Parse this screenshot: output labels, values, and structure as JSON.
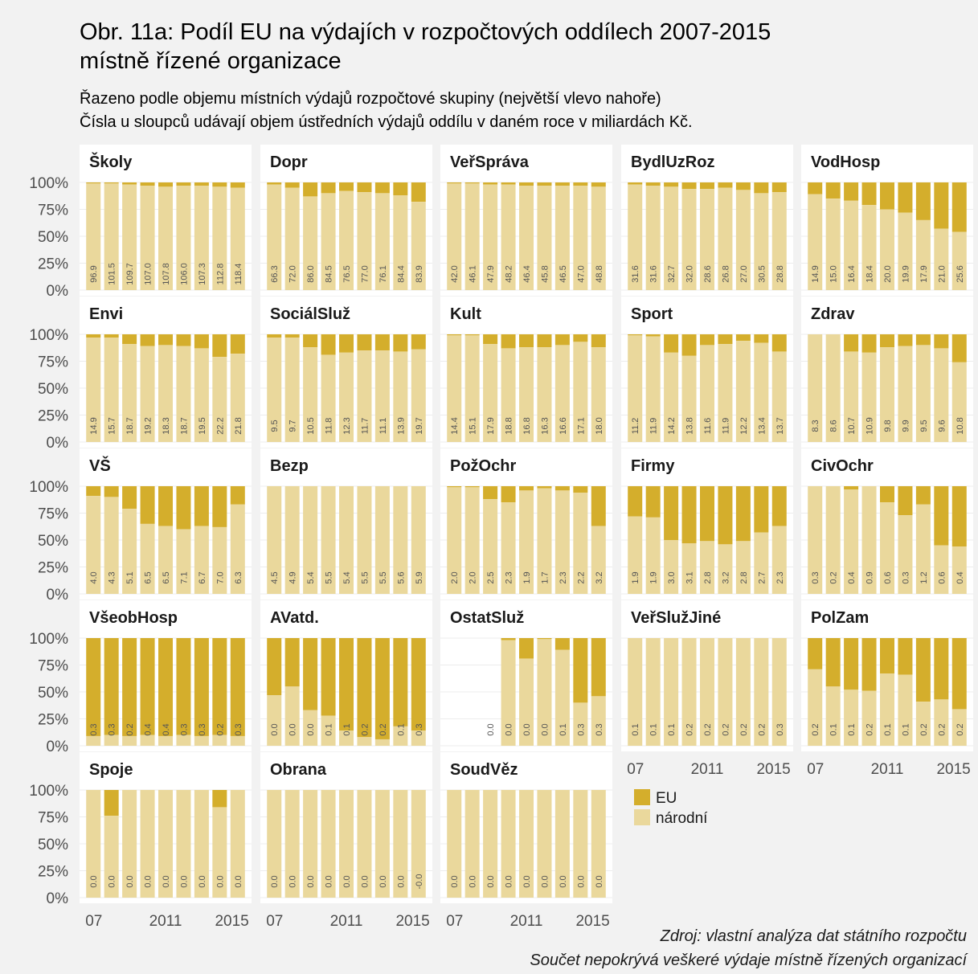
{
  "title_line1": "Obr. 11a: Podíl EU na výdajích v rozpočtových oddílech 2007-2015",
  "title_line2": "místně řízené organizace",
  "subtitle_line1": "Řazeno podle objemu místních výdajů rozpočtové skupiny (největší vlevo nahoře)",
  "subtitle_line2": "Čísla u sloupců udávají objem ústředních výdajů oddílu v daném roce v miliardách Kč.",
  "caption_line1": "Zdroj: vlastní analýza dat státního rozpočtu",
  "caption_line2": "Součet nepokrývá veškeré výdaje místně řízených organizací",
  "colors": {
    "eu": "#d4ae2c",
    "narodni": "#ead89c",
    "panel": "#ffffff",
    "grid": "#ececec"
  },
  "chart_data": {
    "type": "bar",
    "stacked": true,
    "y_ticks": [
      "100%",
      "75%",
      "50%",
      "25%",
      "0%"
    ],
    "ylim": [
      0,
      1
    ],
    "x": [
      2007,
      2008,
      2009,
      2010,
      2011,
      2012,
      2013,
      2014,
      2015
    ],
    "x_tick_labels": [
      "07",
      "2011",
      "2015"
    ],
    "legend": {
      "placement": "right",
      "items": [
        {
          "key": "eu",
          "label": "EU"
        },
        {
          "key": "narodni",
          "label": "národní"
        }
      ]
    },
    "panels": [
      {
        "name": "Školy",
        "eu_share": [
          0.01,
          0.01,
          0.02,
          0.03,
          0.04,
          0.03,
          0.03,
          0.04,
          0.05
        ],
        "labels": [
          "96.9",
          "101.5",
          "109.7",
          "107.0",
          "107.8",
          "106.0",
          "107.3",
          "112.8",
          "118.4"
        ]
      },
      {
        "name": "Dopr",
        "eu_share": [
          0.02,
          0.05,
          0.13,
          0.1,
          0.08,
          0.09,
          0.1,
          0.12,
          0.18
        ],
        "labels": [
          "66.3",
          "72.0",
          "86.0",
          "84.5",
          "76.5",
          "77.0",
          "76.1",
          "84.4",
          "83.9"
        ]
      },
      {
        "name": "VeřSpráva",
        "eu_share": [
          0.01,
          0.01,
          0.02,
          0.02,
          0.03,
          0.03,
          0.03,
          0.03,
          0.04
        ],
        "labels": [
          "42.0",
          "46.1",
          "47.9",
          "48.2",
          "46.4",
          "45.8",
          "46.5",
          "47.0",
          "48.8"
        ]
      },
      {
        "name": "BydlUzRoz",
        "eu_share": [
          0.02,
          0.03,
          0.04,
          0.06,
          0.06,
          0.05,
          0.07,
          0.1,
          0.09
        ],
        "labels": [
          "31.6",
          "31.6",
          "32.7",
          "32.0",
          "28.6",
          "26.8",
          "27.0",
          "30.5",
          "28.8"
        ]
      },
      {
        "name": "VodHosp",
        "eu_share": [
          0.11,
          0.15,
          0.17,
          0.21,
          0.25,
          0.28,
          0.35,
          0.43,
          0.46
        ],
        "labels": [
          "14.9",
          "15.0",
          "16.4",
          "18.4",
          "20.0",
          "19.9",
          "17.9",
          "21.0",
          "25.6"
        ]
      },
      {
        "name": "Envi",
        "eu_share": [
          0.03,
          0.03,
          0.09,
          0.11,
          0.1,
          0.11,
          0.13,
          0.21,
          0.18
        ],
        "labels": [
          "14.9",
          "15.7",
          "18.7",
          "19.2",
          "18.3",
          "18.7",
          "19.5",
          "22.2",
          "21.8"
        ]
      },
      {
        "name": "SociálSluž",
        "eu_share": [
          0.03,
          0.03,
          0.12,
          0.19,
          0.17,
          0.15,
          0.15,
          0.16,
          0.14
        ],
        "labels": [
          "9.5",
          "9.7",
          "10.5",
          "11.8",
          "12.3",
          "11.7",
          "11.1",
          "13.9",
          "19.7"
        ]
      },
      {
        "name": "Kult",
        "eu_share": [
          0.01,
          0.01,
          0.09,
          0.13,
          0.12,
          0.12,
          0.1,
          0.07,
          0.12
        ],
        "labels": [
          "14.4",
          "15.1",
          "17.9",
          "18.8",
          "16.8",
          "16.3",
          "16.6",
          "17.1",
          "18.0"
        ]
      },
      {
        "name": "Sport",
        "eu_share": [
          0.01,
          0.02,
          0.17,
          0.2,
          0.1,
          0.09,
          0.06,
          0.08,
          0.16
        ],
        "labels": [
          "11.2",
          "11.9",
          "14.2",
          "13.8",
          "11.6",
          "11.9",
          "12.2",
          "13.4",
          "13.7"
        ]
      },
      {
        "name": "Zdrav",
        "eu_share": [
          0.0,
          0.0,
          0.16,
          0.17,
          0.12,
          0.11,
          0.1,
          0.13,
          0.26
        ],
        "labels": [
          "8.3",
          "8.6",
          "10.7",
          "10.9",
          "9.8",
          "9.9",
          "9.5",
          "9.6",
          "10.8"
        ]
      },
      {
        "name": "VŠ",
        "eu_share": [
          0.09,
          0.1,
          0.21,
          0.35,
          0.37,
          0.4,
          0.37,
          0.38,
          0.17
        ],
        "labels": [
          "4.0",
          "4.3",
          "5.1",
          "6.5",
          "6.5",
          "7.1",
          "6.7",
          "7.0",
          "6.3"
        ]
      },
      {
        "name": "Bezp",
        "eu_share": [
          0,
          0,
          0,
          0,
          0,
          0,
          0,
          0,
          0
        ],
        "labels": [
          "4.5",
          "4.9",
          "5.4",
          "5.5",
          "5.4",
          "5.5",
          "5.5",
          "5.6",
          "5.9"
        ]
      },
      {
        "name": "PožOchr",
        "eu_share": [
          0.01,
          0.01,
          0.12,
          0.15,
          0.04,
          0.02,
          0.04,
          0.06,
          0.37
        ],
        "labels": [
          "2.0",
          "2.0",
          "2.5",
          "2.3",
          "1.9",
          "1.7",
          "2.3",
          "2.2",
          "3.2"
        ]
      },
      {
        "name": "Firmy",
        "eu_share": [
          0.28,
          0.29,
          0.5,
          0.53,
          0.51,
          0.54,
          0.51,
          0.43,
          0.37
        ],
        "labels": [
          "1.9",
          "1.9",
          "3.0",
          "3.1",
          "2.8",
          "3.2",
          "2.8",
          "2.7",
          "2.3"
        ]
      },
      {
        "name": "CivOchr",
        "eu_share": [
          0.0,
          0.0,
          0.03,
          0.0,
          0.15,
          0.27,
          0.17,
          0.55,
          0.56
        ],
        "labels": [
          "0.3",
          "0.2",
          "0.4",
          "0.9",
          "0.6",
          "0.3",
          "1.2",
          "0.6",
          "0.4"
        ]
      },
      {
        "name": "VšeobHosp",
        "eu_share": [
          0.91,
          0.9,
          0.91,
          0.9,
          0.91,
          0.9,
          0.91,
          0.9,
          0.91
        ],
        "labels": [
          "0.3",
          "0.3",
          "0.2",
          "0.4",
          "0.4",
          "0.3",
          "0.3",
          "0.2",
          "0.3"
        ]
      },
      {
        "name": "AVatd.",
        "eu_share": [
          0.53,
          0.45,
          0.67,
          0.72,
          0.86,
          0.92,
          0.94,
          0.82,
          0.86
        ],
        "labels": [
          "0.0",
          "0.0",
          "0.0",
          "0.1",
          "0.1",
          "0.2",
          "0.2",
          "0.1",
          "0.3"
        ]
      },
      {
        "name": "OstatSluž",
        "eu_share": [
          null,
          null,
          null,
          0.02,
          0.19,
          0.01,
          0.11,
          0.6,
          0.54
        ],
        "labels": [
          "",
          "",
          "0.0",
          "0.0",
          "0.0",
          "0.0",
          "0.1",
          "0.3",
          "0.3"
        ]
      },
      {
        "name": "VeřSlužJiné",
        "eu_share": [
          0,
          0,
          0,
          0,
          0,
          0,
          0,
          0,
          0
        ],
        "labels": [
          "0.1",
          "0.1",
          "0.1",
          "0.2",
          "0.2",
          "0.2",
          "0.2",
          "0.2",
          "0.3"
        ]
      },
      {
        "name": "PolZam",
        "eu_share": [
          0.29,
          0.45,
          0.48,
          0.49,
          0.33,
          0.34,
          0.59,
          0.57,
          0.66
        ],
        "labels": [
          "0.2",
          "0.1",
          "0.1",
          "0.2",
          "0.1",
          "0.1",
          "0.2",
          "0.2",
          "0.2"
        ]
      },
      {
        "name": "Spoje",
        "eu_share": [
          0.0,
          0.24,
          0.0,
          0.0,
          0.0,
          0.0,
          0.0,
          0.16,
          0.0
        ],
        "labels": [
          "0.0",
          "0.0",
          "0.0",
          "0.0",
          "0.0",
          "0.0",
          "0.0",
          "0.0",
          "0.0"
        ]
      },
      {
        "name": "Obrana",
        "eu_share": [
          0,
          0,
          0,
          0,
          0,
          0,
          0,
          0,
          0
        ],
        "labels": [
          "0.0",
          "0.0",
          "0.0",
          "0.0",
          "0.0",
          "0.0",
          "0.0",
          "0.0",
          "-0.0"
        ]
      },
      {
        "name": "SoudVěz",
        "eu_share": [
          0,
          0,
          0,
          0,
          0,
          0,
          0,
          0,
          0
        ],
        "labels": [
          "0.0",
          "0.0",
          "0.0",
          "0.0",
          "0.0",
          "0.0",
          "0.0",
          "0.0",
          "0.0"
        ]
      }
    ]
  }
}
